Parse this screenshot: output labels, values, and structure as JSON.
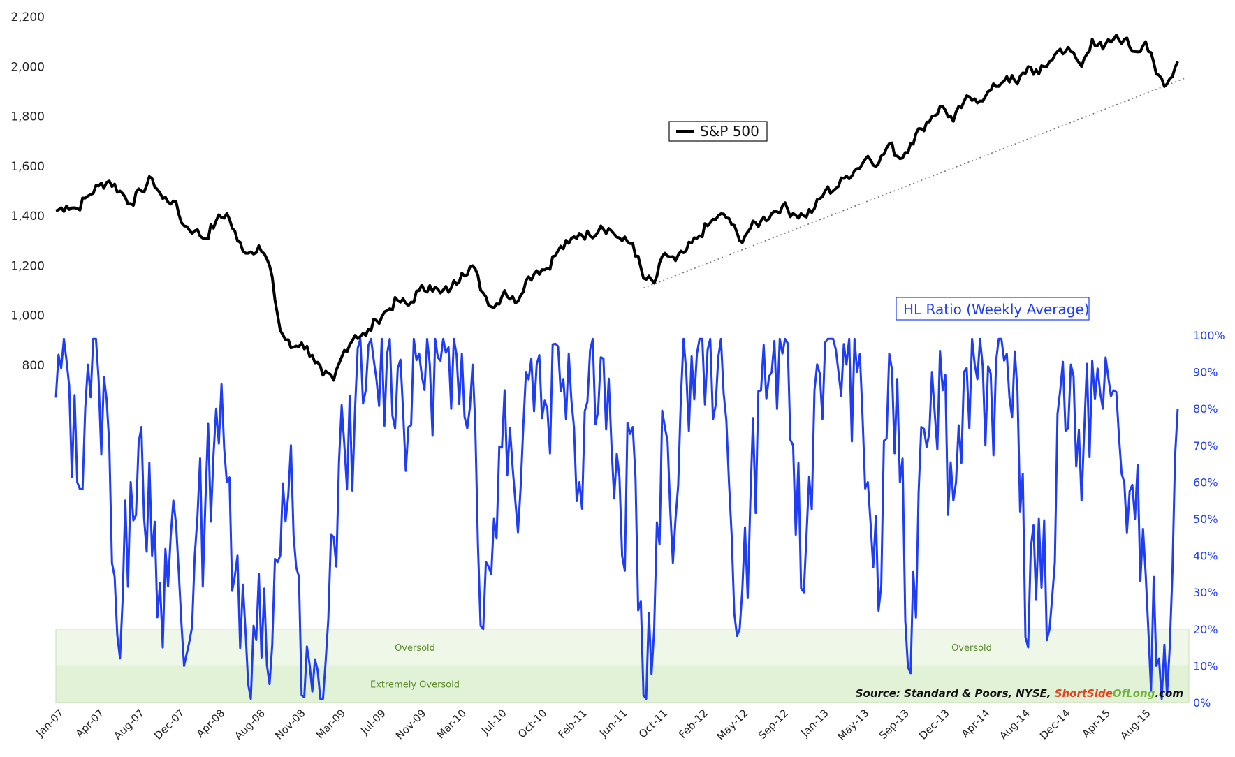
{
  "chart_data": {
    "type": "line",
    "x_ticks": [
      "Jan-07",
      "Apr-07",
      "Aug-07",
      "Dec-07",
      "Apr-08",
      "Aug-08",
      "Nov-08",
      "Mar-09",
      "Jul-09",
      "Nov-09",
      "Mar-10",
      "Jul-10",
      "Oct-10",
      "Feb-11",
      "Jun-11",
      "Oct-11",
      "Feb-12",
      "May-12",
      "Sep-12",
      "Jan-13",
      "May-13",
      "Sep-13",
      "Dec-13",
      "Apr-14",
      "Aug-14",
      "Dec-14",
      "Apr-15",
      "Aug-15"
    ],
    "left_axis": {
      "ticks": [
        "800",
        "1,000",
        "1,200",
        "1,400",
        "1,600",
        "1,800",
        "2,000",
        "2,200"
      ],
      "tick_values": [
        800,
        1000,
        1200,
        1400,
        1600,
        1800,
        2000,
        2200
      ],
      "ylim": [
        800,
        2200
      ]
    },
    "right_axis": {
      "ticks": [
        "0%",
        "10%",
        "20%",
        "30%",
        "40%",
        "50%",
        "60%",
        "70%",
        "80%",
        "90%",
        "100%"
      ],
      "tick_values": [
        0,
        10,
        20,
        30,
        40,
        50,
        60,
        70,
        80,
        90,
        100
      ],
      "ylim": [
        0,
        100
      ]
    },
    "series": [
      {
        "name": "S&P 500",
        "axis": "left",
        "color": "#000000",
        "points": [
          [
            "Jan-07",
            1420
          ],
          [
            "Feb-07",
            1440
          ],
          [
            "Mar-07",
            1430
          ],
          [
            "Apr-07",
            1480
          ],
          [
            "May-07",
            1520
          ],
          [
            "Jun-07",
            1540
          ],
          [
            "Jul-07",
            1500
          ],
          [
            "Aug-07",
            1450
          ],
          [
            "Sep-07",
            1500
          ],
          [
            "Oct-07",
            1550
          ],
          [
            "Nov-07",
            1470
          ],
          [
            "Dec-07",
            1460
          ],
          [
            "Jan-08",
            1360
          ],
          [
            "Feb-08",
            1340
          ],
          [
            "Mar-08",
            1310
          ],
          [
            "Apr-08",
            1380
          ],
          [
            "May-08",
            1410
          ],
          [
            "Jun-08",
            1300
          ],
          [
            "Jul-08",
            1250
          ],
          [
            "Aug-08",
            1280
          ],
          [
            "Sep-08",
            1200
          ],
          [
            "Oct-08",
            940
          ],
          [
            "Nov-08",
            870
          ],
          [
            "Dec-08",
            890
          ],
          [
            "Jan-09",
            840
          ],
          [
            "Feb-09",
            760
          ],
          [
            "Mar-09",
            740
          ],
          [
            "Apr-09",
            860
          ],
          [
            "May-09",
            920
          ],
          [
            "Jun-09",
            920
          ],
          [
            "Jul-09",
            980
          ],
          [
            "Aug-09",
            1020
          ],
          [
            "Sep-09",
            1060
          ],
          [
            "Oct-09",
            1040
          ],
          [
            "Nov-09",
            1100
          ],
          [
            "Dec-09",
            1120
          ],
          [
            "Jan-10",
            1090
          ],
          [
            "Feb-10",
            1110
          ],
          [
            "Mar-10",
            1170
          ],
          [
            "Apr-10",
            1200
          ],
          [
            "May-10",
            1090
          ],
          [
            "Jun-10",
            1030
          ],
          [
            "Jul-10",
            1100
          ],
          [
            "Aug-10",
            1050
          ],
          [
            "Sep-10",
            1140
          ],
          [
            "Oct-10",
            1180
          ],
          [
            "Nov-10",
            1190
          ],
          [
            "Dec-10",
            1260
          ],
          [
            "Jan-11",
            1290
          ],
          [
            "Feb-11",
            1330
          ],
          [
            "Mar-11",
            1320
          ],
          [
            "Apr-11",
            1360
          ],
          [
            "May-11",
            1340
          ],
          [
            "Jun-11",
            1300
          ],
          [
            "Jul-11",
            1290
          ],
          [
            "Aug-11",
            1150
          ],
          [
            "Sep-11",
            1130
          ],
          [
            "Oct-11",
            1250
          ],
          [
            "Nov-11",
            1220
          ],
          [
            "Dec-11",
            1260
          ],
          [
            "Jan-12",
            1310
          ],
          [
            "Feb-12",
            1360
          ],
          [
            "Mar-12",
            1400
          ],
          [
            "Apr-12",
            1390
          ],
          [
            "May-12",
            1300
          ],
          [
            "Jun-12",
            1350
          ],
          [
            "Jul-12",
            1380
          ],
          [
            "Aug-12",
            1410
          ],
          [
            "Sep-12",
            1440
          ],
          [
            "Oct-12",
            1410
          ],
          [
            "Nov-12",
            1400
          ],
          [
            "Dec-12",
            1430
          ],
          [
            "Jan-13",
            1500
          ],
          [
            "Feb-13",
            1510
          ],
          [
            "Mar-13",
            1560
          ],
          [
            "Apr-13",
            1590
          ],
          [
            "May-13",
            1640
          ],
          [
            "Jun-13",
            1610
          ],
          [
            "Jul-13",
            1690
          ],
          [
            "Aug-13",
            1630
          ],
          [
            "Sep-13",
            1690
          ],
          [
            "Oct-13",
            1750
          ],
          [
            "Nov-13",
            1800
          ],
          [
            "Dec-13",
            1840
          ],
          [
            "Jan-14",
            1780
          ],
          [
            "Feb-14",
            1860
          ],
          [
            "Mar-14",
            1870
          ],
          [
            "Apr-14",
            1880
          ],
          [
            "May-14",
            1920
          ],
          [
            "Jun-14",
            1960
          ],
          [
            "Jul-14",
            1930
          ],
          [
            "Aug-14",
            2000
          ],
          [
            "Sep-14",
            1970
          ],
          [
            "Oct-14",
            2020
          ],
          [
            "Nov-14",
            2070
          ],
          [
            "Dec-14",
            2060
          ],
          [
            "Jan-15",
            2000
          ],
          [
            "Feb-15",
            2110
          ],
          [
            "Mar-15",
            2070
          ],
          [
            "Apr-15",
            2110
          ],
          [
            "May-15",
            2110
          ],
          [
            "Jun-15",
            2060
          ],
          [
            "Jul-15",
            2100
          ],
          [
            "Aug-15",
            1970
          ],
          [
            "Sep-15",
            1930
          ],
          [
            "Oct-15",
            2020
          ]
        ]
      },
      {
        "name": "HL Ratio (Weekly Average)",
        "axis": "right",
        "color": "#1f3df5",
        "points": [
          [
            "Jan-07",
            83
          ],
          [
            "Feb-07",
            93
          ],
          [
            "Mar-07",
            60
          ],
          [
            "Apr-07",
            92
          ],
          [
            "May-07",
            88
          ],
          [
            "Jun-07",
            70
          ],
          [
            "Jul-07",
            12
          ],
          [
            "Aug-07",
            60
          ],
          [
            "Sep-07",
            75
          ],
          [
            "Oct-07",
            40
          ],
          [
            "Nov-07",
            15
          ],
          [
            "Dec-07",
            55
          ],
          [
            "Jan-08",
            10
          ],
          [
            "Feb-08",
            40
          ],
          [
            "Mar-08",
            55
          ],
          [
            "Apr-08",
            80
          ],
          [
            "May-08",
            60
          ],
          [
            "Jun-08",
            40
          ],
          [
            "Jul-08",
            5
          ],
          [
            "Aug-08",
            35
          ],
          [
            "Sep-08",
            5
          ],
          [
            "Oct-08",
            40
          ],
          [
            "Nov-08",
            70
          ],
          [
            "Dec-08",
            2
          ],
          [
            "Jan-09",
            3
          ],
          [
            "Feb-09",
            1
          ],
          [
            "Mar-09",
            45
          ],
          [
            "Apr-09",
            70
          ],
          [
            "May-09",
            80
          ],
          [
            "Jun-09",
            85
          ],
          [
            "Jul-09",
            88
          ],
          [
            "Aug-09",
            95
          ],
          [
            "Sep-09",
            91
          ],
          [
            "Oct-09",
            75
          ],
          [
            "Nov-09",
            95
          ],
          [
            "Dec-09",
            92
          ],
          [
            "Jan-10",
            93
          ],
          [
            "Feb-10",
            80
          ],
          [
            "Mar-10",
            95
          ],
          [
            "Apr-10",
            92
          ],
          [
            "May-10",
            20
          ],
          [
            "Jun-10",
            50
          ],
          [
            "Jul-10",
            85
          ],
          [
            "Aug-10",
            55
          ],
          [
            "Sep-10",
            90
          ],
          [
            "Oct-10",
            92
          ],
          [
            "Nov-10",
            80
          ],
          [
            "Dec-10",
            97
          ],
          [
            "Jan-11",
            95
          ],
          [
            "Feb-11",
            60
          ],
          [
            "Mar-11",
            96
          ],
          [
            "Apr-11",
            94
          ],
          [
            "May-11",
            70
          ],
          [
            "Jun-11",
            40
          ],
          [
            "Jul-11",
            75
          ],
          [
            "Aug-11",
            2
          ],
          [
            "Sep-11",
            20
          ],
          [
            "Oct-11",
            75
          ],
          [
            "Nov-11",
            50
          ],
          [
            "Dec-11",
            90
          ],
          [
            "Jan-12",
            95
          ],
          [
            "Feb-12",
            96
          ],
          [
            "Mar-12",
            94
          ],
          [
            "Apr-12",
            60
          ],
          [
            "May-12",
            20
          ],
          [
            "Jun-12",
            55
          ],
          [
            "Jul-12",
            85
          ],
          [
            "Aug-12",
            90
          ],
          [
            "Sep-12",
            95
          ],
          [
            "Oct-12",
            70
          ],
          [
            "Nov-12",
            30
          ],
          [
            "Dec-12",
            85
          ],
          [
            "Jan-13",
            98
          ],
          [
            "Feb-13",
            96
          ],
          [
            "Mar-13",
            92
          ],
          [
            "Apr-13",
            90
          ],
          [
            "May-13",
            60
          ],
          [
            "Jun-13",
            25
          ],
          [
            "Jul-13",
            95
          ],
          [
            "Aug-13",
            60
          ],
          [
            "Sep-13",
            8
          ],
          [
            "Oct-13",
            75
          ],
          [
            "Nov-13",
            90
          ],
          [
            "Dec-13",
            85
          ],
          [
            "Jan-14",
            55
          ],
          [
            "Feb-14",
            90
          ],
          [
            "Mar-14",
            92
          ],
          [
            "Apr-14",
            70
          ],
          [
            "May-14",
            93
          ],
          [
            "Jun-14",
            95
          ],
          [
            "Jul-14",
            85
          ],
          [
            "Aug-14",
            15
          ],
          [
            "Sep-14",
            50
          ],
          [
            "Oct-14",
            20
          ],
          [
            "Nov-14",
            85
          ],
          [
            "Dec-14",
            92
          ],
          [
            "Jan-15",
            55
          ],
          [
            "Feb-15",
            93
          ],
          [
            "Mar-15",
            80
          ],
          [
            "Apr-15",
            85
          ],
          [
            "May-15",
            60
          ],
          [
            "Jun-15",
            50
          ],
          [
            "Jul-15",
            35
          ],
          [
            "Aug-15",
            10
          ],
          [
            "Sep-15",
            2
          ],
          [
            "Oct-15",
            80
          ]
        ]
      }
    ],
    "zones": [
      {
        "label": "Oversold",
        "from": 10,
        "to": 20,
        "color": "#eef7e8"
      },
      {
        "label": "Extremely Oversold",
        "from": 0,
        "to": 10,
        "color": "#e2f2d6"
      }
    ],
    "zone_labels": [
      "Oversold",
      "Oversold",
      "Extremely Oversold"
    ],
    "legend": {
      "sp500": "S&P 500",
      "hl": "HL Ratio (Weekly Average)"
    },
    "source": {
      "prefix": "Source: Standard & Poors, NYSE, ",
      "brand_part1": "Short",
      "brand_part2": "Side",
      "brand_part3": "Of",
      "brand_part4": "Long",
      "suffix": ".com"
    },
    "trendline": {
      "from": [
        "Aug-11",
        1110
      ],
      "to": [
        "Oct-15",
        1955
      ]
    }
  }
}
